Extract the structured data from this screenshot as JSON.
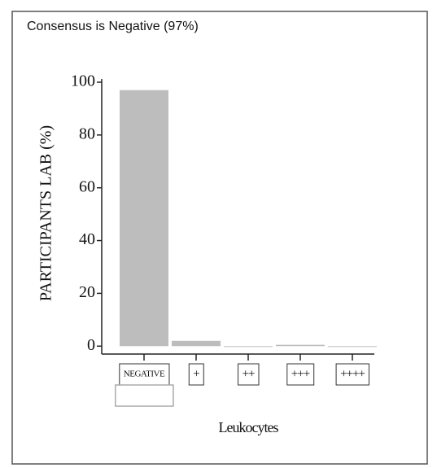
{
  "chart_data": {
    "type": "bar",
    "title": "Consensus is Negative (97%)",
    "y_label": "PARTICIPANTS LAB (%)",
    "x_label": "Leukocytes",
    "categories": [
      "NEGATIVE",
      "+",
      "++",
      "+++",
      "++++"
    ],
    "values": [
      97,
      2,
      0,
      0.5,
      0
    ],
    "color": "#bdbdbd",
    "ylim": [
      -3,
      100
    ],
    "yticks": [
      0,
      20,
      40,
      60,
      80,
      100
    ]
  }
}
